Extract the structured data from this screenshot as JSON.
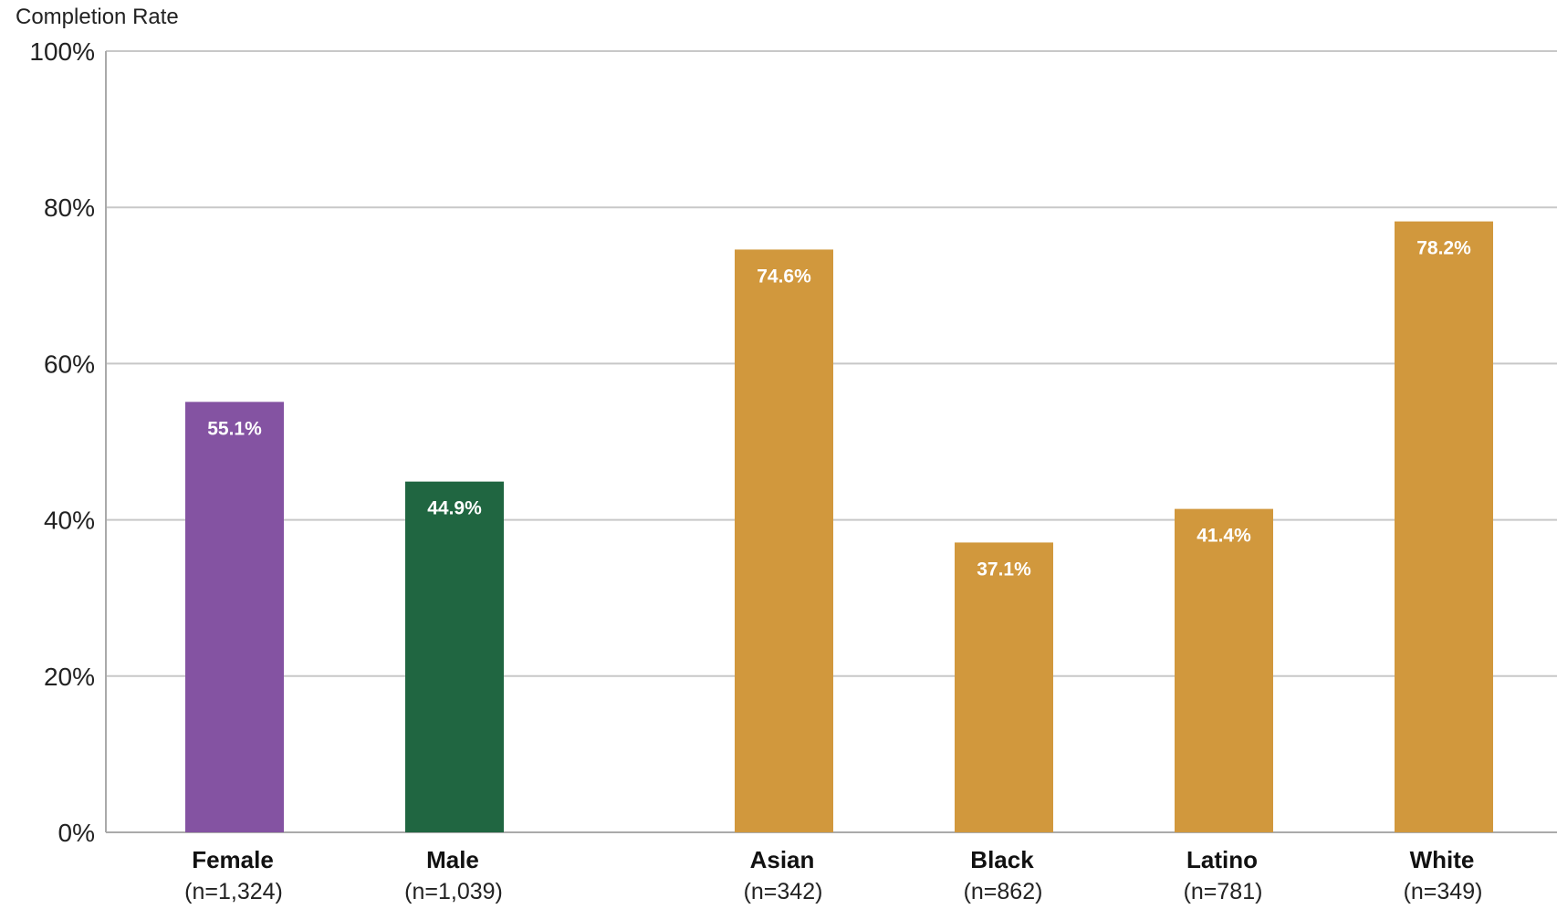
{
  "chart_data": {
    "type": "bar",
    "ylabel": "Completion Rate",
    "ylim": [
      0,
      100
    ],
    "y_ticks": [
      {
        "value": 0,
        "label": "0%"
      },
      {
        "value": 20,
        "label": "20%"
      },
      {
        "value": 40,
        "label": "40%"
      },
      {
        "value": 60,
        "label": "60%"
      },
      {
        "value": 80,
        "label": "80%"
      },
      {
        "value": 100,
        "label": "100%"
      }
    ],
    "grid": true,
    "categories": [
      "Female",
      "Male",
      "Asian",
      "Black",
      "Latino",
      "White"
    ],
    "category_notes": [
      "(n=1,324)",
      "(n=1,039)",
      "(n=342)",
      "(n=862)",
      "(n=781)",
      "(n=349)"
    ],
    "values": [
      55.1,
      44.9,
      74.6,
      37.1,
      41.4,
      78.2
    ],
    "value_labels": [
      "55.1%",
      "44.9%",
      "74.6%",
      "37.1%",
      "41.4%",
      "78.2%"
    ],
    "colors": [
      "#8453a2",
      "#206641",
      "#d1983d",
      "#d1983d",
      "#d1983d",
      "#d1983d"
    ],
    "gridline_color": "#c8c8c8",
    "axis_color": "#aaaaaa"
  }
}
